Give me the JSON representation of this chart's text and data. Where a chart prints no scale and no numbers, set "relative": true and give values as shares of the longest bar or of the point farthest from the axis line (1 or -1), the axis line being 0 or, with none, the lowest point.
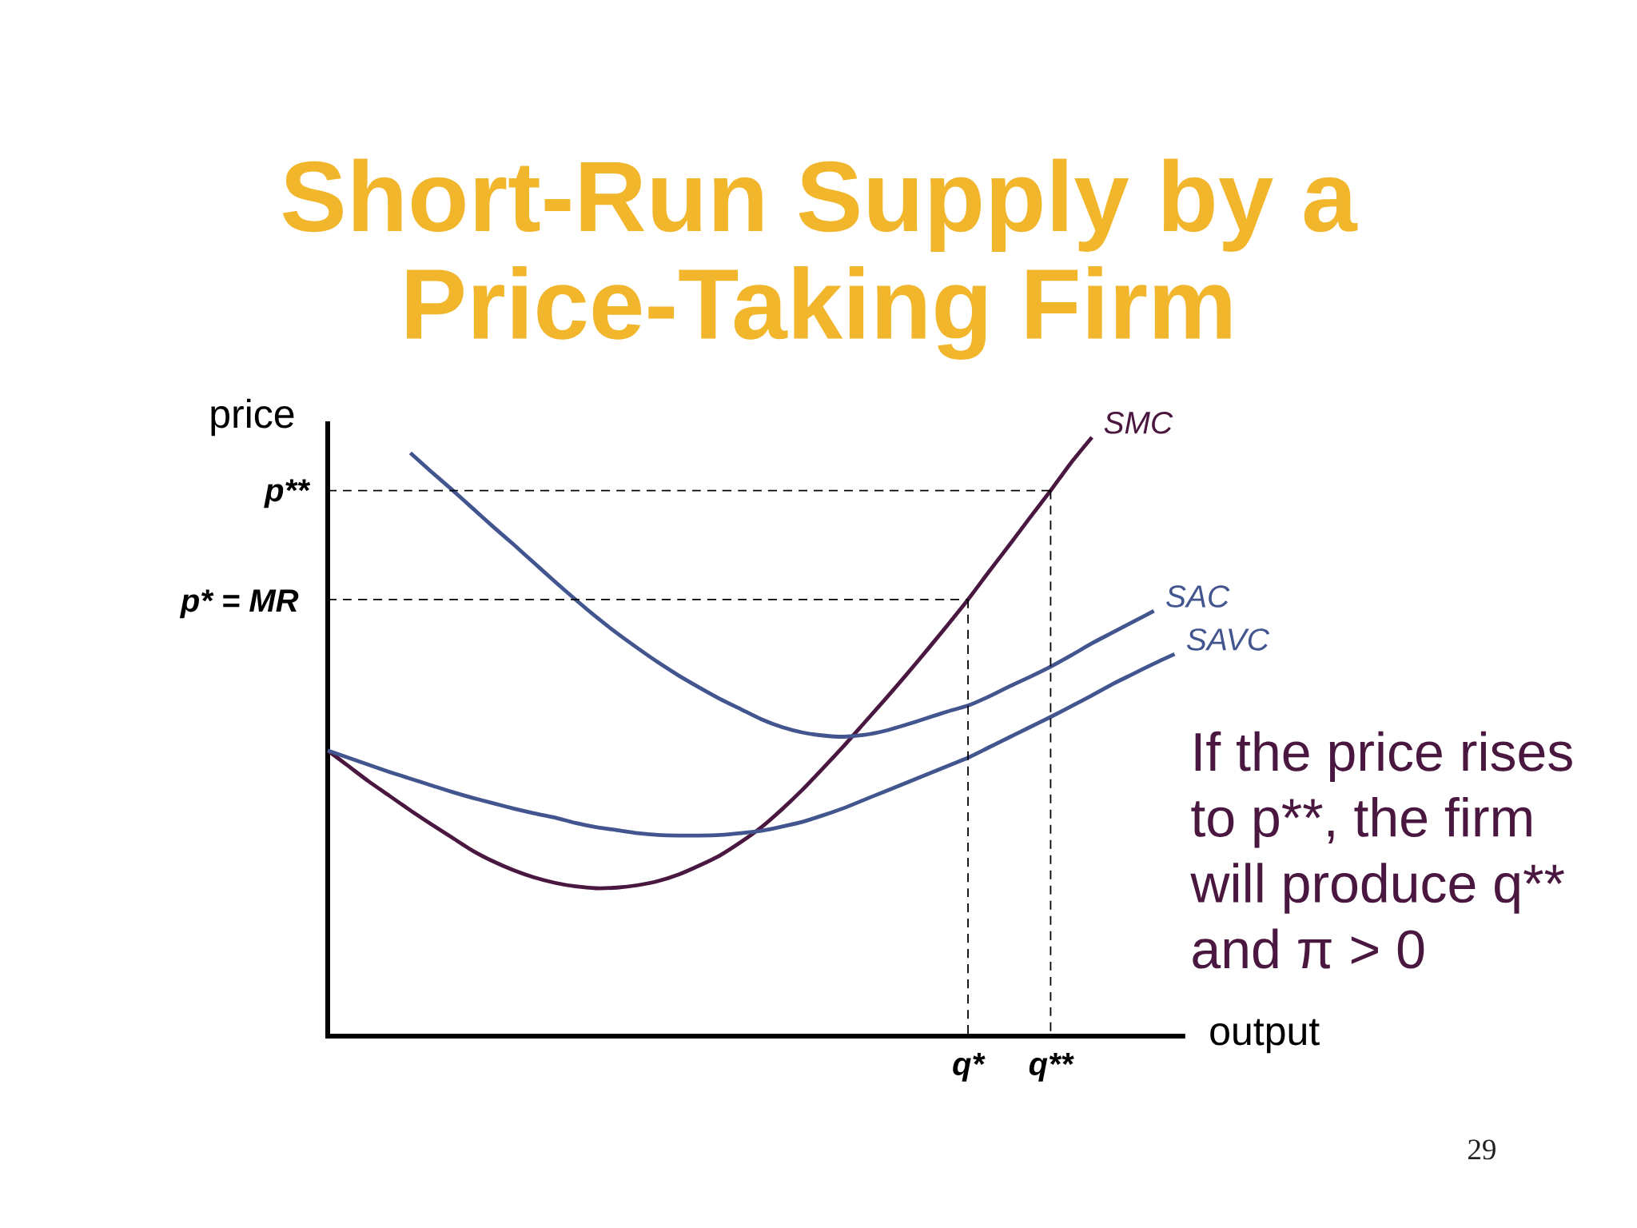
{
  "chart_data": {
    "type": "line",
    "title": "Short-Run Supply by a Price-Taking Firm",
    "xlabel": "output",
    "ylabel": "price",
    "relative": true,
    "line_style": "solid",
    "categories": [
      null,
      null,
      null,
      null,
      null,
      null,
      null,
      null,
      null,
      null,
      null,
      null,
      null,
      null,
      null,
      null,
      null,
      null,
      null,
      null,
      null,
      null,
      null,
      null,
      null,
      null,
      null,
      null,
      null,
      null,
      null,
      "q*",
      null,
      null,
      null,
      "q**",
      null,
      null,
      null,
      null,
      null,
      null
    ],
    "series": [
      {
        "name": "SMC",
        "color": "#4a1740",
        "values": [
          0.477,
          0.451,
          0.425,
          0.401,
          0.377,
          0.354,
          0.332,
          0.31,
          0.292,
          0.277,
          0.265,
          0.256,
          0.25,
          0.247,
          0.248,
          0.252,
          0.259,
          0.27,
          0.285,
          0.302,
          0.324,
          0.349,
          0.379,
          0.412,
          0.448,
          0.485,
          0.524,
          0.563,
          0.603,
          0.644,
          0.686,
          0.729,
          0.775,
          0.82,
          0.866,
          0.911,
          0.958,
          1.0,
          null,
          null,
          null,
          null
        ]
      },
      {
        "name": "SAC",
        "color": "#43558f",
        "values": [
          null,
          null,
          null,
          null,
          0.974,
          0.943,
          0.913,
          0.882,
          0.851,
          0.821,
          0.79,
          0.759,
          0.729,
          0.7,
          0.673,
          0.648,
          0.624,
          0.602,
          0.582,
          0.563,
          0.546,
          0.529,
          0.516,
          0.507,
          0.502,
          0.5,
          0.503,
          0.51,
          0.52,
          0.531,
          0.542,
          0.552,
          0.567,
          0.584,
          0.6,
          0.617,
          0.636,
          0.656,
          0.674,
          0.692,
          0.71,
          null
        ]
      },
      {
        "name": "SAVC",
        "color": "#43558f",
        "values": [
          0.477,
          0.465,
          0.453,
          0.441,
          0.43,
          0.419,
          0.408,
          0.398,
          0.389,
          0.38,
          0.372,
          0.365,
          0.356,
          0.349,
          0.344,
          0.339,
          0.336,
          0.335,
          0.335,
          0.336,
          0.339,
          0.343,
          0.35,
          0.358,
          0.369,
          0.381,
          0.395,
          0.409,
          0.423,
          0.437,
          0.451,
          0.465,
          0.482,
          0.499,
          0.516,
          0.533,
          0.551,
          0.569,
          0.588,
          0.605,
          0.622,
          0.638
        ]
      },
      {
        "color": "#000000",
        "line_style": "dashed",
        "values": [
          0.729,
          0.729,
          0.729,
          0.729,
          0.729,
          0.729,
          0.729,
          0.729,
          0.729,
          0.729,
          0.729,
          0.729,
          0.729,
          0.729,
          0.729,
          0.729,
          0.729,
          0.729,
          0.729,
          0.729,
          0.729,
          0.729,
          0.729,
          0.729,
          0.729,
          0.729,
          0.729,
          0.729,
          0.729,
          0.729,
          0.729,
          0.729,
          null,
          null,
          null,
          null,
          null,
          null,
          null,
          null,
          null,
          null
        ]
      },
      {
        "color": "#000000",
        "line_style": "dashed",
        "x": [
          "q*",
          "q*"
        ],
        "values": [
          0.729,
          0
        ]
      },
      {
        "color": "#000000",
        "line_style": "dashed",
        "values": [
          0.911,
          0.911,
          0.911,
          0.911,
          0.911,
          0.911,
          0.911,
          0.911,
          0.911,
          0.911,
          0.911,
          0.911,
          0.911,
          0.911,
          0.911,
          0.911,
          0.911,
          0.911,
          0.911,
          0.911,
          0.911,
          0.911,
          0.911,
          0.911,
          0.911,
          0.911,
          0.911,
          0.911,
          0.911,
          0.911,
          0.911,
          0.911,
          0.911,
          0.911,
          0.911,
          0.911,
          null,
          null,
          null,
          null,
          null,
          null
        ]
      },
      {
        "color": "#000000",
        "line_style": "dashed",
        "x": [
          "q**",
          "q**"
        ],
        "values": [
          0.911,
          0
        ]
      }
    ],
    "annotations": [
      "p**",
      "p* = MR",
      "If the price rises",
      "to p**, the firm",
      "will produce q**",
      "and π > 0",
      "29"
    ]
  }
}
